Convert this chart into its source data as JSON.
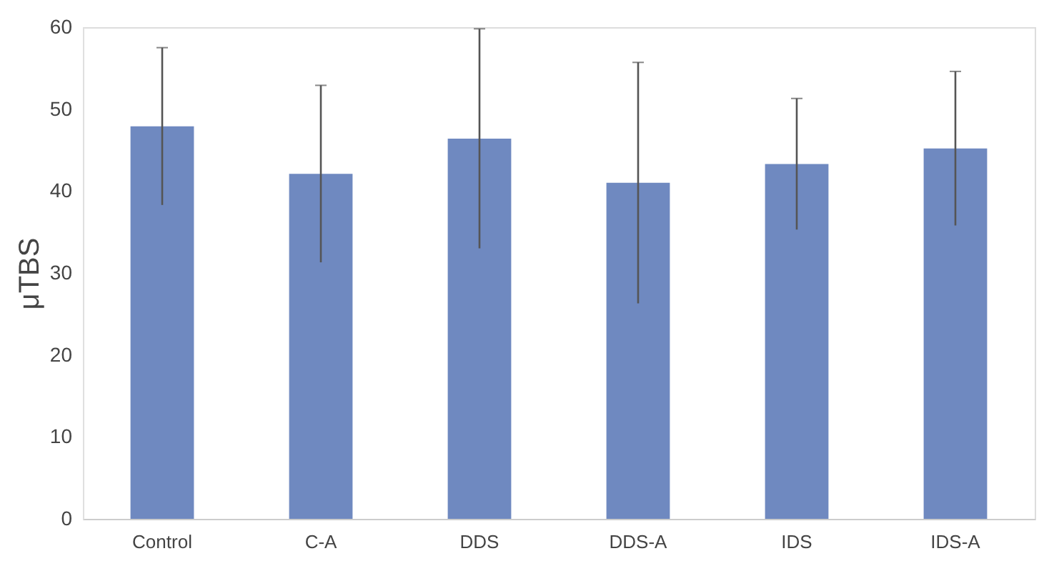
{
  "chart_data": {
    "type": "bar",
    "ylabel": "μTBS",
    "categories": [
      "Control",
      "C-A",
      "DDS",
      "DDS-A",
      "IDS",
      "IDS-A"
    ],
    "values": [
      47.9,
      42.1,
      46.4,
      41.0,
      43.3,
      45.2
    ],
    "errors": [
      9.6,
      10.8,
      13.4,
      14.7,
      8.0,
      9.4
    ],
    "color": "#6f89c0",
    "ylim": [
      0,
      60
    ],
    "yticks": [
      0,
      10,
      20,
      30,
      40,
      50,
      60
    ],
    "grid": false
  }
}
